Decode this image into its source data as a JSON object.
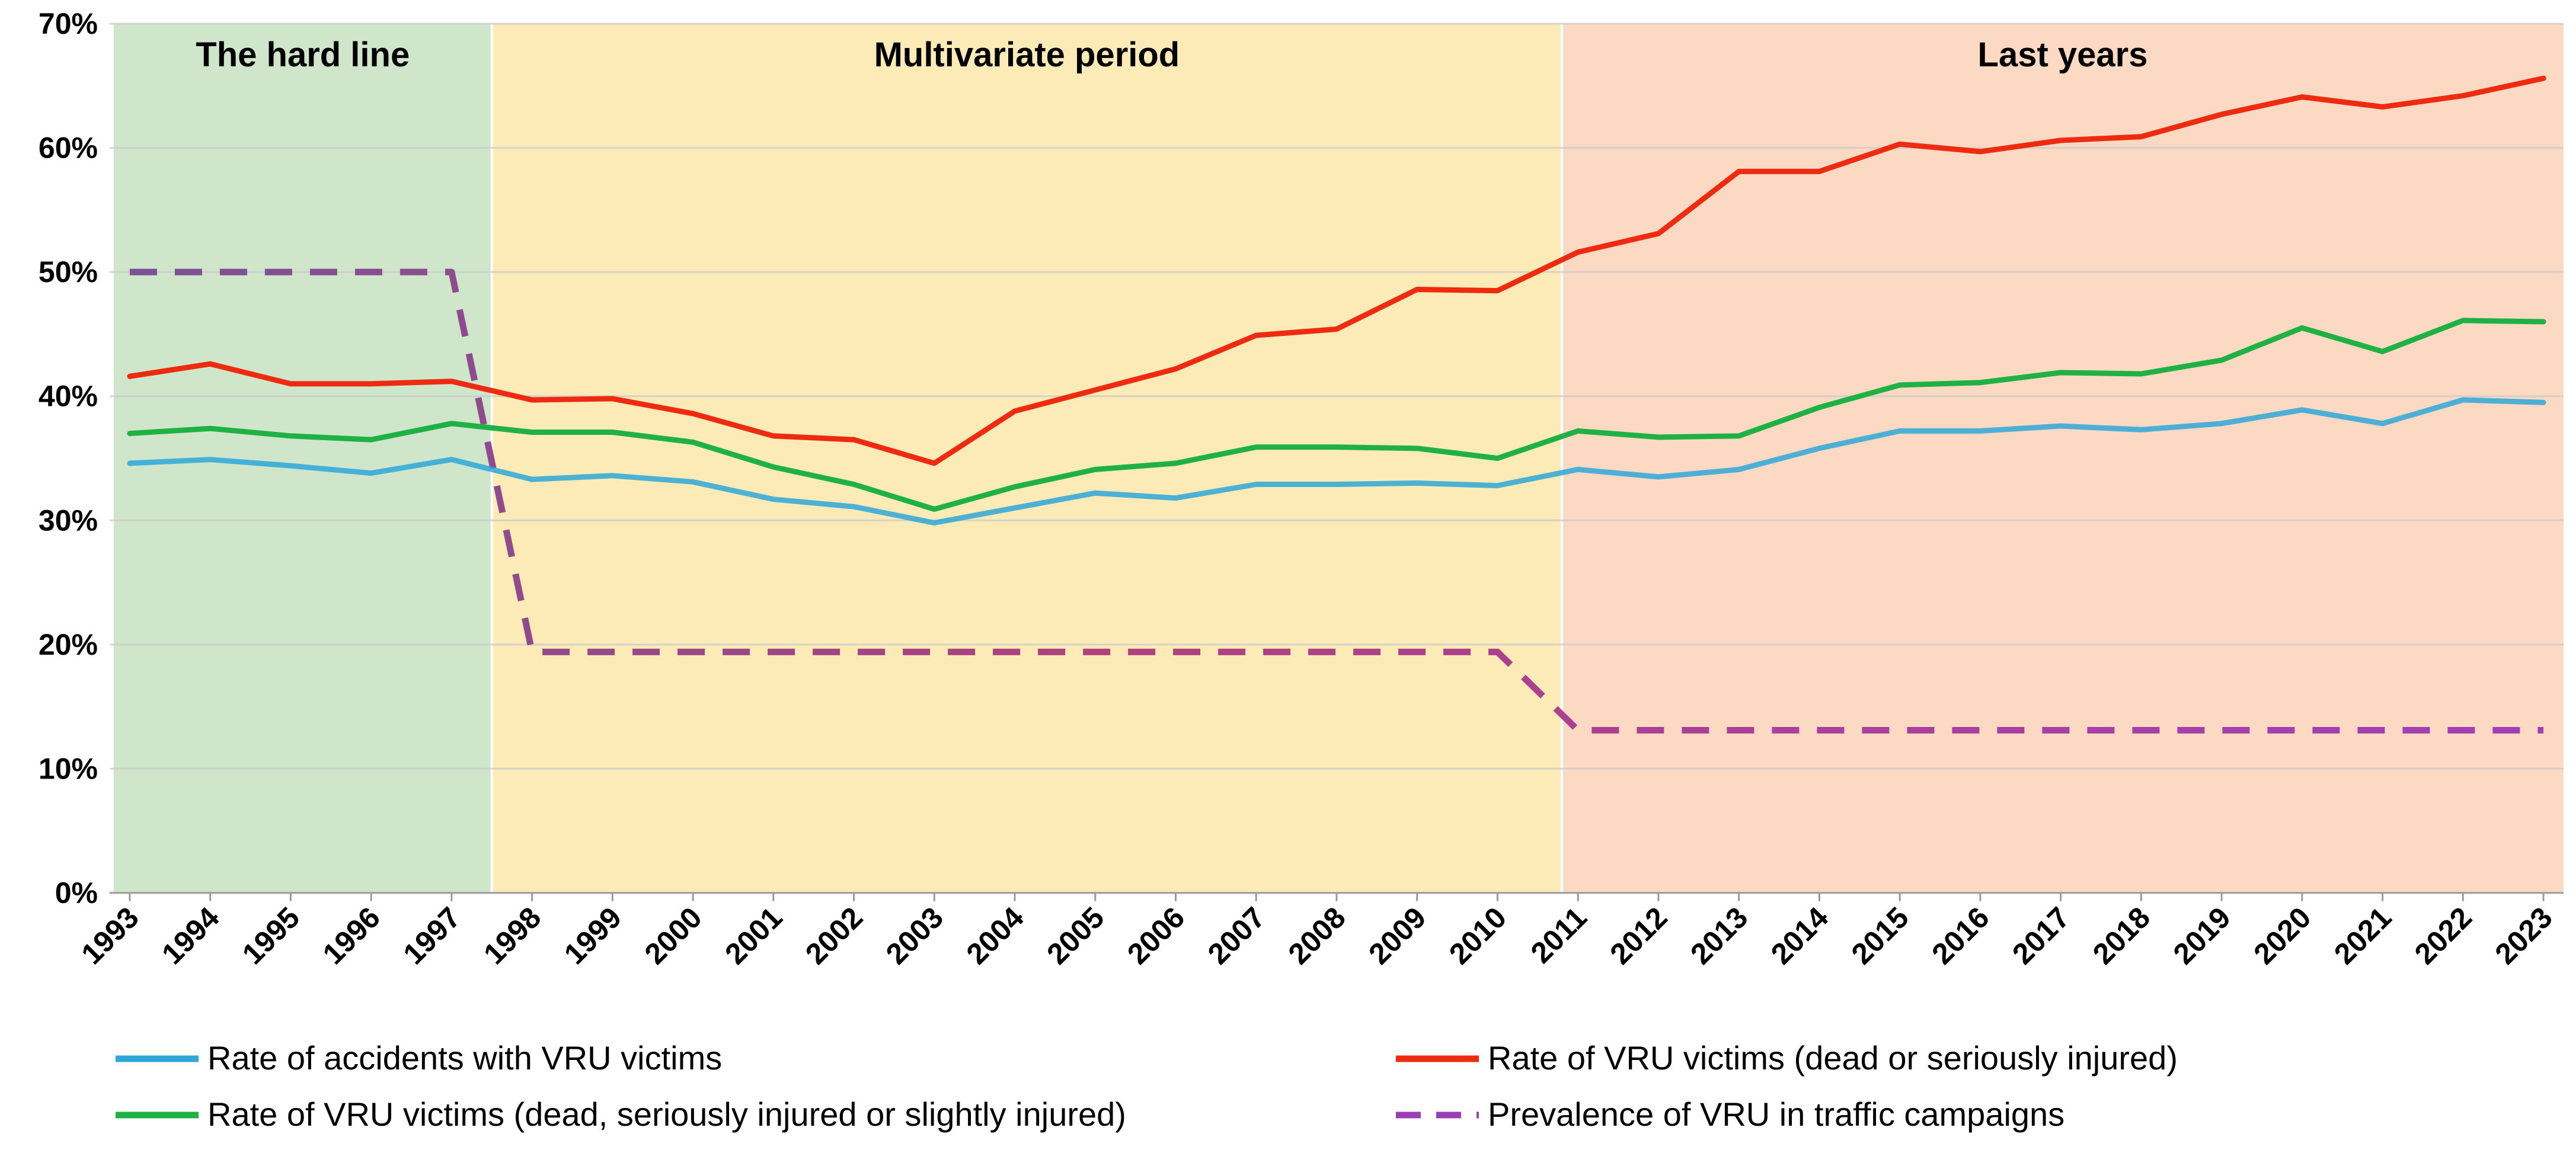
{
  "chart_data": {
    "type": "line",
    "x": [
      1993,
      1994,
      1995,
      1996,
      1997,
      1998,
      1999,
      2000,
      2001,
      2002,
      2003,
      2004,
      2005,
      2006,
      2007,
      2008,
      2009,
      2010,
      2011,
      2012,
      2013,
      2014,
      2015,
      2016,
      2017,
      2018,
      2019,
      2020,
      2021,
      2022,
      2023
    ],
    "x_tick_labels": [
      "1993",
      "1994",
      "1995",
      "1996",
      "1997",
      "1998",
      "1999",
      "2000",
      "2001",
      "2002",
      "2003",
      "2004",
      "2005",
      "2006",
      "2007",
      "2008",
      "2009",
      "2010",
      "2011",
      "2012",
      "2013",
      "2014",
      "2015",
      "2016",
      "2017",
      "2018",
      "2019",
      "2020",
      "2021",
      "2022",
      "2023"
    ],
    "ylim": [
      0,
      70
    ],
    "y_ticks": [
      0,
      10,
      20,
      30,
      40,
      50,
      60,
      70
    ],
    "y_tick_labels": [
      "0%",
      "10%",
      "20%",
      "30%",
      "40%",
      "50%",
      "60%",
      "70%"
    ],
    "grid": "horizontal",
    "legend_position": "bottom",
    "periods": [
      {
        "label": "The hard line",
        "start": 1992.8,
        "end": 1997.5,
        "color": "#cfe6cb"
      },
      {
        "label": "Multivariate period",
        "start": 1997.5,
        "end": 2010.8,
        "color": "#fcebb6"
      },
      {
        "label": "Last years",
        "start": 2010.8,
        "end": 2023.4,
        "color": "#fcd9c2"
      }
    ],
    "series": [
      {
        "name": "Rate of accidents with VRU victims",
        "color": "#2ea7d8",
        "dashed": false,
        "values": [
          34.6,
          34.9,
          34.4,
          33.8,
          34.9,
          33.3,
          33.6,
          33.1,
          31.7,
          31.1,
          29.8,
          31.0,
          32.2,
          31.8,
          32.9,
          32.9,
          33.0,
          32.8,
          34.1,
          33.5,
          34.1,
          35.8,
          37.2,
          37.2,
          37.6,
          37.3,
          37.8,
          38.9,
          37.8,
          39.7,
          39.5
        ]
      },
      {
        "name": "Rate of VRU victims (dead or seriously injured)",
        "color": "#ee2a10",
        "dashed": false,
        "values": [
          41.6,
          42.6,
          41.0,
          41.0,
          41.2,
          39.7,
          39.8,
          38.6,
          36.8,
          36.5,
          34.6,
          38.8,
          40.5,
          42.2,
          44.9,
          45.4,
          48.6,
          48.5,
          51.6,
          53.1,
          58.1,
          58.1,
          60.3,
          59.7,
          60.6,
          60.9,
          62.7,
          64.1,
          63.3,
          64.2,
          65.6
        ]
      },
      {
        "name": "Rate of VRU victims (dead, seriously injured or slightly injured)",
        "color": "#1fb144",
        "dashed": false,
        "values": [
          37.0,
          37.4,
          36.8,
          36.5,
          37.8,
          37.1,
          37.1,
          36.3,
          34.3,
          32.9,
          30.9,
          32.7,
          34.1,
          34.6,
          35.9,
          35.9,
          35.8,
          35.0,
          37.2,
          36.7,
          36.8,
          39.1,
          40.9,
          41.1,
          41.9,
          41.8,
          42.9,
          45.5,
          43.6,
          46.1,
          46.0
        ]
      },
      {
        "name": "Prevalence of VRU in traffic campaigns",
        "color": "#9a3fb5",
        "dashed": true,
        "values": [
          50,
          50,
          50,
          50,
          50,
          19.4,
          19.4,
          19.4,
          19.4,
          19.4,
          19.4,
          19.4,
          19.4,
          19.4,
          19.4,
          19.4,
          19.4,
          19.4,
          13.1,
          13.1,
          13.1,
          13.1,
          13.1,
          13.1,
          13.1,
          13.1,
          13.1,
          13.1,
          13.1,
          13.1,
          13.1
        ]
      }
    ]
  }
}
